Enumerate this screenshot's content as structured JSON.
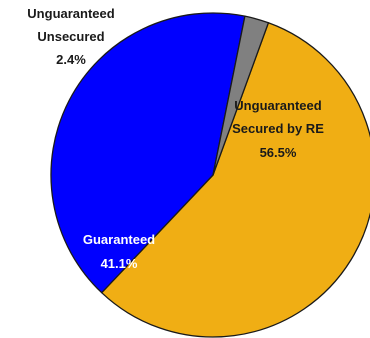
{
  "chart_data": {
    "type": "pie",
    "title": "",
    "slices": [
      {
        "label_lines": [
          "Unguaranteed",
          "Secured by RE"
        ],
        "value": 56.5,
        "value_label": "56.5%",
        "color": "#F0AE14",
        "text_color": "#1a1a1a"
      },
      {
        "label_lines": [
          "Guaranteed"
        ],
        "value": 41.1,
        "value_label": "41.1%",
        "color": "#0000FF",
        "text_color": "#ffffff"
      },
      {
        "label_lines": [
          "Unguaranteed",
          "Unsecured"
        ],
        "value": 2.4,
        "value_label": "2.4%",
        "color": "#808080",
        "text_color": "#1a1a1a"
      }
    ],
    "legend": "none",
    "labels_position": "on-slices-and-outside"
  }
}
